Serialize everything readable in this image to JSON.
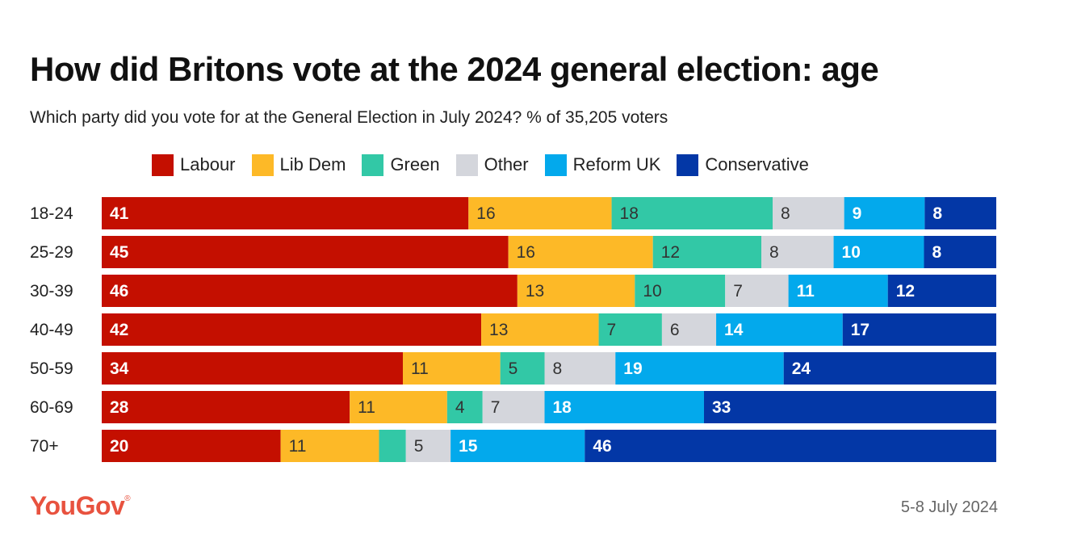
{
  "colors": {
    "Labour": "#c40f00",
    "Lib Dem": "#fdb927",
    "Green": "#32c8a6",
    "Other": "#d4d6dc",
    "Reform UK": "#03a9ec",
    "Conservative": "#0337a6"
  },
  "chart_data": {
    "type": "bar",
    "orientation": "horizontal",
    "stacked": true,
    "title": "How did Britons vote at the 2024 general election: age",
    "subtitle": "Which party did you vote for at the General Election in July 2024? % of 35,205 voters",
    "categories": [
      "18-24",
      "25-29",
      "30-39",
      "40-49",
      "50-59",
      "60-69",
      "70+"
    ],
    "series": [
      {
        "name": "Labour",
        "values": [
          41,
          45,
          46,
          42,
          34,
          28,
          20
        ],
        "labels": [
          "41",
          "45",
          "46",
          "42",
          "34",
          "28",
          "20"
        ]
      },
      {
        "name": "Lib Dem",
        "values": [
          16,
          16,
          13,
          13,
          11,
          11,
          11
        ],
        "labels": [
          "16",
          "16",
          "13",
          "13",
          "11",
          "11",
          "11"
        ]
      },
      {
        "name": "Green",
        "values": [
          18,
          12,
          10,
          7,
          5,
          4,
          3
        ],
        "labels": [
          "18",
          "12",
          "10",
          "7",
          "5",
          "4",
          ""
        ]
      },
      {
        "name": "Other",
        "values": [
          8,
          8,
          7,
          6,
          8,
          7,
          5
        ],
        "labels": [
          "8",
          "8",
          "7",
          "6",
          "8",
          "7",
          "5"
        ]
      },
      {
        "name": "Reform UK",
        "values": [
          9,
          10,
          11,
          14,
          19,
          18,
          15
        ],
        "labels": [
          "9",
          "10",
          "11",
          "14",
          "19",
          "18",
          "15"
        ]
      },
      {
        "name": "Conservative",
        "values": [
          8,
          8,
          12,
          17,
          24,
          33,
          46
        ],
        "labels": [
          "8",
          "8",
          "12",
          "17",
          "24",
          "33",
          "46"
        ]
      }
    ],
    "legend_position": "top",
    "grid": false
  },
  "branding": {
    "logo": "YouGov",
    "logo_mark": "®"
  },
  "footer": {
    "date": "5-8 July 2024"
  }
}
